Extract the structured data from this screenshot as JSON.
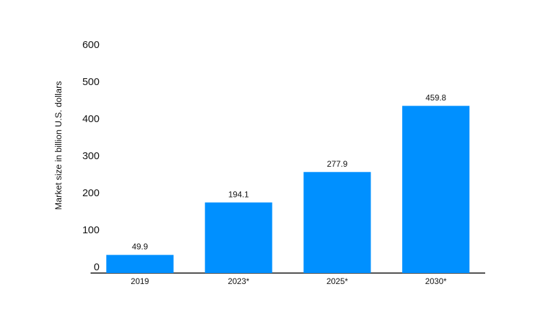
{
  "chart_data": {
    "type": "bar",
    "y_axis_label": "Market size in billion U.S. dollars",
    "categories": [
      "2019",
      "2023*",
      "2025*",
      "2030*"
    ],
    "values": [
      49.9,
      194.1,
      277.9,
      459.8
    ],
    "color": "#0090ff",
    "ylim": [
      0,
      600
    ],
    "yticks": [
      0,
      100,
      200,
      300,
      400,
      500,
      600
    ],
    "grid": false
  }
}
